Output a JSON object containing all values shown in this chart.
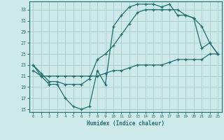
{
  "title": "",
  "xlabel": "Humidex (Indice chaleur)",
  "background_color": "#cee9e9",
  "grid_color": "#aad0d0",
  "line_color": "#1e6e6e",
  "xlim": [
    -0.5,
    23.5
  ],
  "ylim": [
    14.5,
    34.5
  ],
  "yticks": [
    15,
    17,
    19,
    21,
    23,
    25,
    27,
    29,
    31,
    33
  ],
  "xticks": [
    0,
    1,
    2,
    3,
    4,
    5,
    6,
    7,
    8,
    9,
    10,
    11,
    12,
    13,
    14,
    15,
    16,
    17,
    18,
    19,
    20,
    21,
    22,
    23
  ],
  "curve1_x": [
    0,
    1,
    2,
    3,
    4,
    5,
    6,
    7,
    8,
    9,
    10,
    11,
    12,
    13,
    14,
    15,
    16,
    17,
    18,
    19,
    20,
    21,
    22,
    23
  ],
  "curve1_y": [
    23,
    21,
    19.5,
    19.5,
    17,
    15.5,
    15,
    15.5,
    22,
    19.5,
    30,
    32,
    33.5,
    34,
    34,
    34,
    33.5,
    34,
    32,
    32,
    31.5,
    26,
    27,
    25
  ],
  "curve2_x": [
    0,
    1,
    2,
    3,
    4,
    5,
    6,
    7,
    8,
    9,
    10,
    11,
    12,
    13,
    14,
    15,
    16,
    17,
    18,
    19,
    20,
    21,
    22,
    23
  ],
  "curve2_y": [
    23,
    21.5,
    20,
    20,
    19.5,
    19.5,
    19.5,
    20.5,
    24,
    25,
    26.5,
    28.5,
    30.5,
    32.5,
    33,
    33,
    33,
    33,
    33,
    32,
    31.5,
    30,
    27,
    25
  ],
  "curve3_x": [
    0,
    1,
    2,
    3,
    4,
    5,
    6,
    7,
    8,
    9,
    10,
    11,
    12,
    13,
    14,
    15,
    16,
    17,
    18,
    19,
    20,
    21,
    22,
    23
  ],
  "curve3_y": [
    22,
    21,
    21,
    21,
    21,
    21,
    21,
    21,
    21,
    21.5,
    22,
    22,
    22.5,
    23,
    23,
    23,
    23,
    23.5,
    24,
    24,
    24,
    24,
    25,
    25
  ]
}
